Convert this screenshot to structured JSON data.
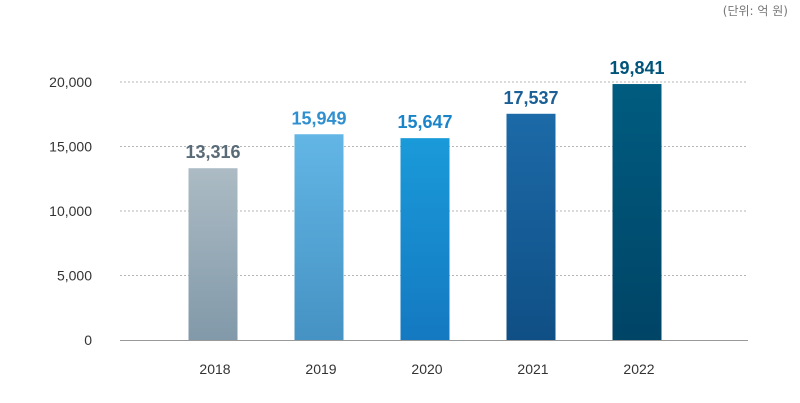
{
  "unit_note": "(단위: 억 원)",
  "colors": {
    "grid": "#b5b5b5",
    "axis": "#999999",
    "text": "#333333"
  },
  "chart_data": {
    "type": "bar",
    "title": "",
    "xlabel": "",
    "ylabel": "",
    "ylim": [
      0,
      20000
    ],
    "yticks": [
      0,
      5000,
      10000,
      15000,
      20000
    ],
    "ytick_labels": [
      "0",
      "5,000",
      "10,000",
      "15,000",
      "20,000"
    ],
    "grid": true,
    "categories": [
      "2018",
      "2019",
      "2020",
      "2021",
      "2022"
    ],
    "values": [
      13316,
      15949,
      15647,
      17537,
      19841
    ],
    "value_labels": [
      "13,316",
      "15,949",
      "15,647",
      "17,537",
      "19,841"
    ],
    "bar_gradients": [
      [
        "#acbbc4",
        "#8199a9"
      ],
      [
        "#62b6e5",
        "#4592c3"
      ],
      [
        "#1a9ad9",
        "#1479c1"
      ],
      [
        "#1c6aa8",
        "#0f4f85"
      ],
      [
        "#005c80",
        "#004466"
      ]
    ],
    "label_colors": [
      "#5a6b78",
      "#2f8fcf",
      "#1a84c8",
      "#1a5f95",
      "#00547a"
    ]
  }
}
